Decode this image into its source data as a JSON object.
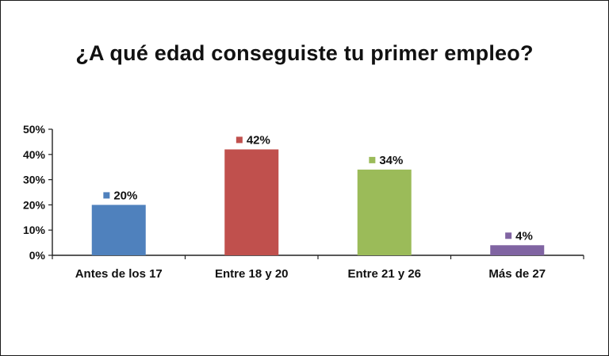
{
  "chart_data": {
    "type": "bar",
    "title": "¿A qué edad conseguiste tu primer empleo?",
    "categories": [
      "Antes de los 17",
      "Entre 18 y 20",
      "Entre 21 y 26",
      "Más de 27"
    ],
    "values": [
      20,
      42,
      34,
      4
    ],
    "value_labels": [
      "20%",
      "42%",
      "34%",
      "4%"
    ],
    "colors": [
      "#4f81bd",
      "#c0504d",
      "#9bbb59",
      "#8064a2"
    ],
    "ylim": [
      0,
      50
    ],
    "yticks": [
      0,
      10,
      20,
      30,
      40,
      50
    ],
    "ytick_labels": [
      "0%",
      "10%",
      "20%",
      "30%",
      "40%",
      "50%"
    ],
    "grid": false,
    "legend": "none",
    "xlabel": "",
    "ylabel": ""
  }
}
